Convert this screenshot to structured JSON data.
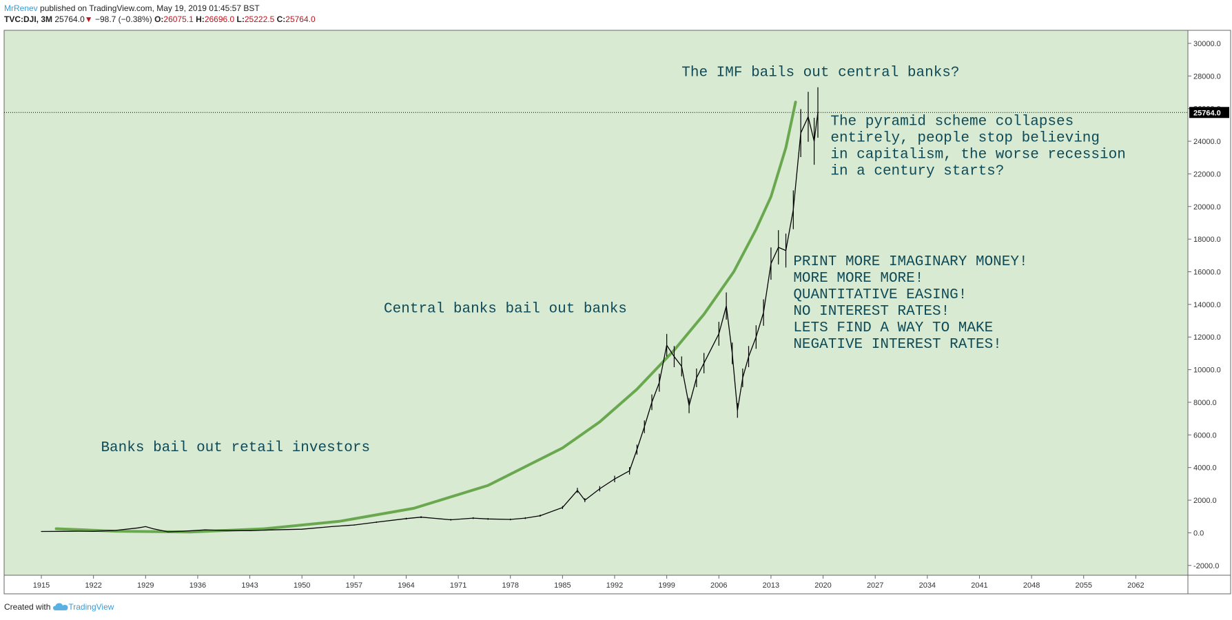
{
  "header": {
    "author": "MrRenev",
    "published_text": " published on TradingView.com, May 19, 2019 01:45:57 BST",
    "symbol": "TVC:DJI, 3M",
    "last_value": "25764.0",
    "change": "−98.7 (−0.38%)",
    "open_label": "O:",
    "open_value": "26075.1",
    "high_label": "H:",
    "high_value": "26696.0",
    "low_label": "L:",
    "low_value": "25222.5",
    "close_label": "C:",
    "close_value": "25764.0"
  },
  "footer": {
    "created_with": "Created with",
    "brand": "TradingView"
  },
  "colors": {
    "background": "#d9ead3",
    "curve": "#6aa84f",
    "annotation": "#0f4a57",
    "price_line": "#000000"
  },
  "chart_data": {
    "type": "line",
    "title": "TVC:DJI, 3M",
    "x_ticks": [
      "1915",
      "1922",
      "1929",
      "1936",
      "1943",
      "1950",
      "1957",
      "1964",
      "1971",
      "1978",
      "1985",
      "1992",
      "1999",
      "2006",
      "2013",
      "2020",
      "2027",
      "2034",
      "2041",
      "2048",
      "2055",
      "2062"
    ],
    "x_range": [
      1910,
      2069
    ],
    "y_ticks": [
      "-2000.0",
      "0.0",
      "2000.0",
      "4000.0",
      "6000.0",
      "8000.0",
      "10000.0",
      "12000.0",
      "14000.0",
      "16000.0",
      "18000.0",
      "20000.0",
      "22000.0",
      "24000.0",
      "26000.0",
      "28000.0",
      "30000.0"
    ],
    "y_range": [
      -2600,
      30800
    ],
    "last_price_label": "25764.0",
    "last_price": 25764,
    "series": [
      {
        "name": "DJI price",
        "x": [
          1915,
          1918,
          1920,
          1922,
          1925,
          1928,
          1929,
          1930,
          1932,
          1934,
          1937,
          1940,
          1943,
          1946,
          1950,
          1954,
          1957,
          1960,
          1964,
          1966,
          1970,
          1973,
          1975,
          1978,
          1980,
          1982,
          1985,
          1987,
          1988,
          1990,
          1992,
          1994,
          1995,
          1996,
          1997,
          1998,
          1999,
          2000,
          2001,
          2002,
          2003,
          2004,
          2006,
          2007,
          2007.8,
          2008.5,
          2009.2,
          2010,
          2011,
          2012,
          2013,
          2014,
          2015,
          2016,
          2017,
          2018,
          2018.8,
          2019.3
        ],
        "y": [
          80,
          90,
          100,
          90,
          150,
          300,
          380,
          250,
          60,
          100,
          180,
          140,
          130,
          180,
          220,
          380,
          480,
          650,
          870,
          960,
          800,
          900,
          850,
          820,
          900,
          1050,
          1550,
          2600,
          2000,
          2700,
          3300,
          3800,
          5100,
          6500,
          8000,
          9200,
          11500,
          10800,
          10200,
          7800,
          9500,
          10400,
          12200,
          13900,
          11000,
          7500,
          9500,
          10800,
          12000,
          13500,
          16500,
          17500,
          17300,
          19800,
          24500,
          25500,
          24000,
          25764
        ]
      },
      {
        "name": "Exponential curve",
        "x": [
          1917,
          1925,
          1935,
          1945,
          1955,
          1965,
          1975,
          1985,
          1990,
          1995,
          2000,
          2004,
          2008,
          2011,
          2013,
          2015,
          2016.3
        ],
        "y": [
          250,
          100,
          50,
          250,
          700,
          1500,
          2900,
          5200,
          6800,
          8800,
          11200,
          13400,
          16000,
          18600,
          20600,
          23600,
          26400
        ]
      }
    ],
    "annotations": [
      {
        "text": "Banks bail out retail investors",
        "x": 1923,
        "y": 5000
      },
      {
        "text": "Central banks bail out banks",
        "x": 1961,
        "y": 13500
      },
      {
        "text": "The IMF bails out central banks?",
        "x": 2001,
        "y": 28000
      },
      {
        "text": "The pyramid scheme collapses\nentirely, people stop believing\nin capitalism, the worse recession\nin a century starts?",
        "x": 2021,
        "y": 25000
      },
      {
        "text": "PRINT MORE IMAGINARY MONEY!\nMORE MORE MORE!\nQUANTITATIVE EASING!\nNO INTEREST RATES!\nLETS FIND A WAY TO MAKE\nNEGATIVE INTEREST RATES!",
        "x": 2016,
        "y": 16400
      }
    ]
  }
}
